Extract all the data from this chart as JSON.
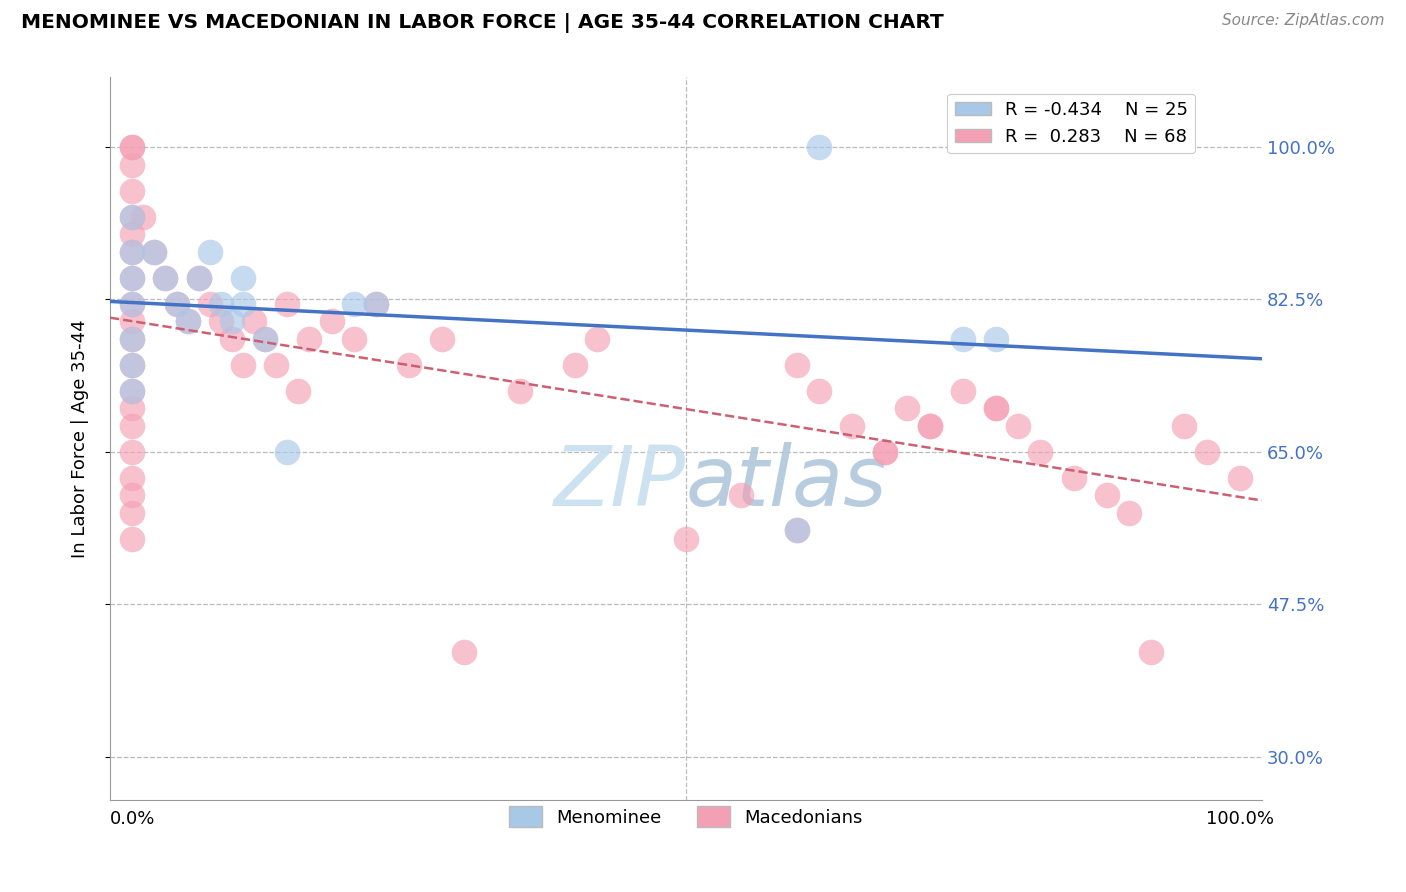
{
  "title": "MENOMINEE VS MACEDONIAN IN LABOR FORCE | AGE 35-44 CORRELATION CHART",
  "source_text": "Source: ZipAtlas.com",
  "ylabel": "In Labor Force | Age 35-44",
  "r_menominee": "-0.434",
  "n_menominee": "25",
  "r_macedonian": "0.283",
  "n_macedonian": "68",
  "menominee_color": "#a8c8e8",
  "macedonian_color": "#f4a0b4",
  "trend_menominee_color": "#4472c4",
  "trend_macedonian_color": "#cc6070",
  "watermark_color": "#cde4f4",
  "ytick_vals": [
    0.3,
    0.475,
    0.65,
    0.825,
    1.0
  ],
  "ytick_labels": [
    "30.0%",
    "47.5%",
    "65.0%",
    "82.5%",
    "100.0%"
  ],
  "menominee_x": [
    0.0,
    0.0,
    0.0,
    0.0,
    0.0,
    0.0,
    0.0,
    0.02,
    0.03,
    0.04,
    0.05,
    0.06,
    0.07,
    0.08,
    0.09,
    0.1,
    0.1,
    0.12,
    0.14,
    0.2,
    0.22,
    0.6,
    0.62,
    0.75,
    0.78
  ],
  "menominee_y": [
    0.92,
    0.88,
    0.85,
    0.82,
    0.78,
    0.75,
    0.72,
    0.88,
    0.85,
    0.82,
    0.8,
    0.85,
    0.88,
    0.82,
    0.8,
    0.85,
    0.82,
    0.78,
    0.65,
    0.82,
    0.82,
    0.56,
    1.0,
    0.78,
    0.78
  ],
  "macedonian_x": [
    0.0,
    0.0,
    0.0,
    0.0,
    0.0,
    0.0,
    0.0,
    0.0,
    0.0,
    0.0,
    0.0,
    0.0,
    0.0,
    0.0,
    0.0,
    0.0,
    0.0,
    0.0,
    0.0,
    0.0,
    0.01,
    0.02,
    0.03,
    0.04,
    0.05,
    0.06,
    0.07,
    0.08,
    0.09,
    0.1,
    0.11,
    0.12,
    0.13,
    0.14,
    0.15,
    0.16,
    0.18,
    0.2,
    0.22,
    0.25,
    0.28,
    0.3,
    0.35,
    0.4,
    0.42,
    0.5,
    0.55,
    0.6,
    0.62,
    0.65,
    0.68,
    0.7,
    0.72,
    0.75,
    0.78,
    0.8,
    0.82,
    0.85,
    0.88,
    0.9,
    0.92,
    0.95,
    0.97,
    1.0,
    0.6,
    0.68,
    0.72,
    0.78
  ],
  "macedonian_y": [
    1.0,
    1.0,
    0.98,
    0.95,
    0.92,
    0.9,
    0.88,
    0.85,
    0.82,
    0.8,
    0.78,
    0.75,
    0.72,
    0.7,
    0.68,
    0.65,
    0.62,
    0.6,
    0.58,
    0.55,
    0.92,
    0.88,
    0.85,
    0.82,
    0.8,
    0.85,
    0.82,
    0.8,
    0.78,
    0.75,
    0.8,
    0.78,
    0.75,
    0.82,
    0.72,
    0.78,
    0.8,
    0.78,
    0.82,
    0.75,
    0.78,
    0.42,
    0.72,
    0.75,
    0.78,
    0.55,
    0.6,
    0.75,
    0.72,
    0.68,
    0.65,
    0.7,
    0.68,
    0.72,
    0.7,
    0.68,
    0.65,
    0.62,
    0.6,
    0.58,
    0.42,
    0.68,
    0.65,
    0.62,
    0.56,
    0.65,
    0.68,
    0.7
  ]
}
